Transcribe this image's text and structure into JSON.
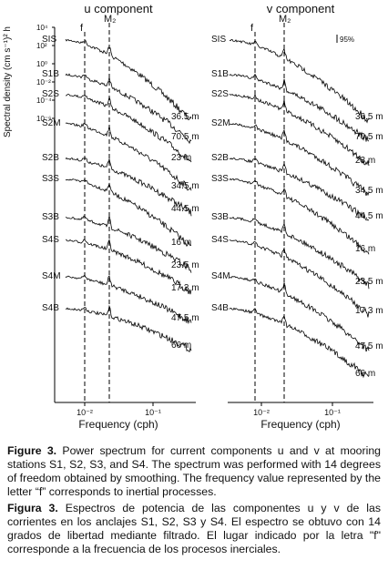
{
  "figure": {
    "u_panel": {
      "title": "u component",
      "stations": [
        "SIS",
        "S1B",
        "S2S",
        "S2M",
        "S2B",
        "S3S",
        "S3B",
        "S4S",
        "S4M",
        "S4B"
      ],
      "depths": [
        "36.5 m",
        "70.5 m",
        "23 m",
        "34.5 m",
        "44.5 m",
        "16 m",
        "23.5 m",
        "17.3 m",
        "47.5 m",
        "66 m"
      ],
      "f_label": "f",
      "m2_label": "M₂",
      "x_ticks": [
        "10⁻²",
        "10⁻¹"
      ],
      "y_ticks": [
        "10⁴",
        "10²",
        "10⁰",
        "10⁻²",
        "10⁻⁴",
        "10⁻⁶"
      ],
      "y_label": "Spectral density (cm s⁻¹)² h",
      "x_label": "Frequency (cph)"
    },
    "v_panel": {
      "title": "v component",
      "stations": [
        "SIS",
        "S1B",
        "S2S",
        "S2M",
        "S2B",
        "S3S",
        "S3B",
        "S4S",
        "S4M",
        "S4B"
      ],
      "depths": [
        "36.5 m",
        "70.5 m",
        "23 m",
        "34.5 m",
        "44.5 m",
        "16 m",
        "23.5 m",
        "17.3 m",
        "47.5 m",
        "66 m"
      ],
      "f_label": "f",
      "m2_label": "M₂",
      "ci_label": "95%",
      "x_ticks": [
        "10⁻²",
        "10⁻¹"
      ],
      "x_label": "Frequency (cph)"
    },
    "caption_en": {
      "label": "Figure 3.",
      "text": " Power spectrum for current components u and v at mooring stations S1, S2, S3, and S4. The spectrum was performed with 14 degrees of freedom obtained by smoothing. The frequency value represented by the letter “f” corresponds to inertial processes."
    },
    "caption_es": {
      "label": "Figura 3.",
      "text": " Espectros de potencia de las componentes u y v de las corrientes en los anclajes S1, S2, S3 y S4. El espectro se obtuvo con 14 grados de libertad mediante filtrado. El lugar indicado por la letra \"f\" corresponde a la frecuencia de los procesos inerciales."
    }
  }
}
